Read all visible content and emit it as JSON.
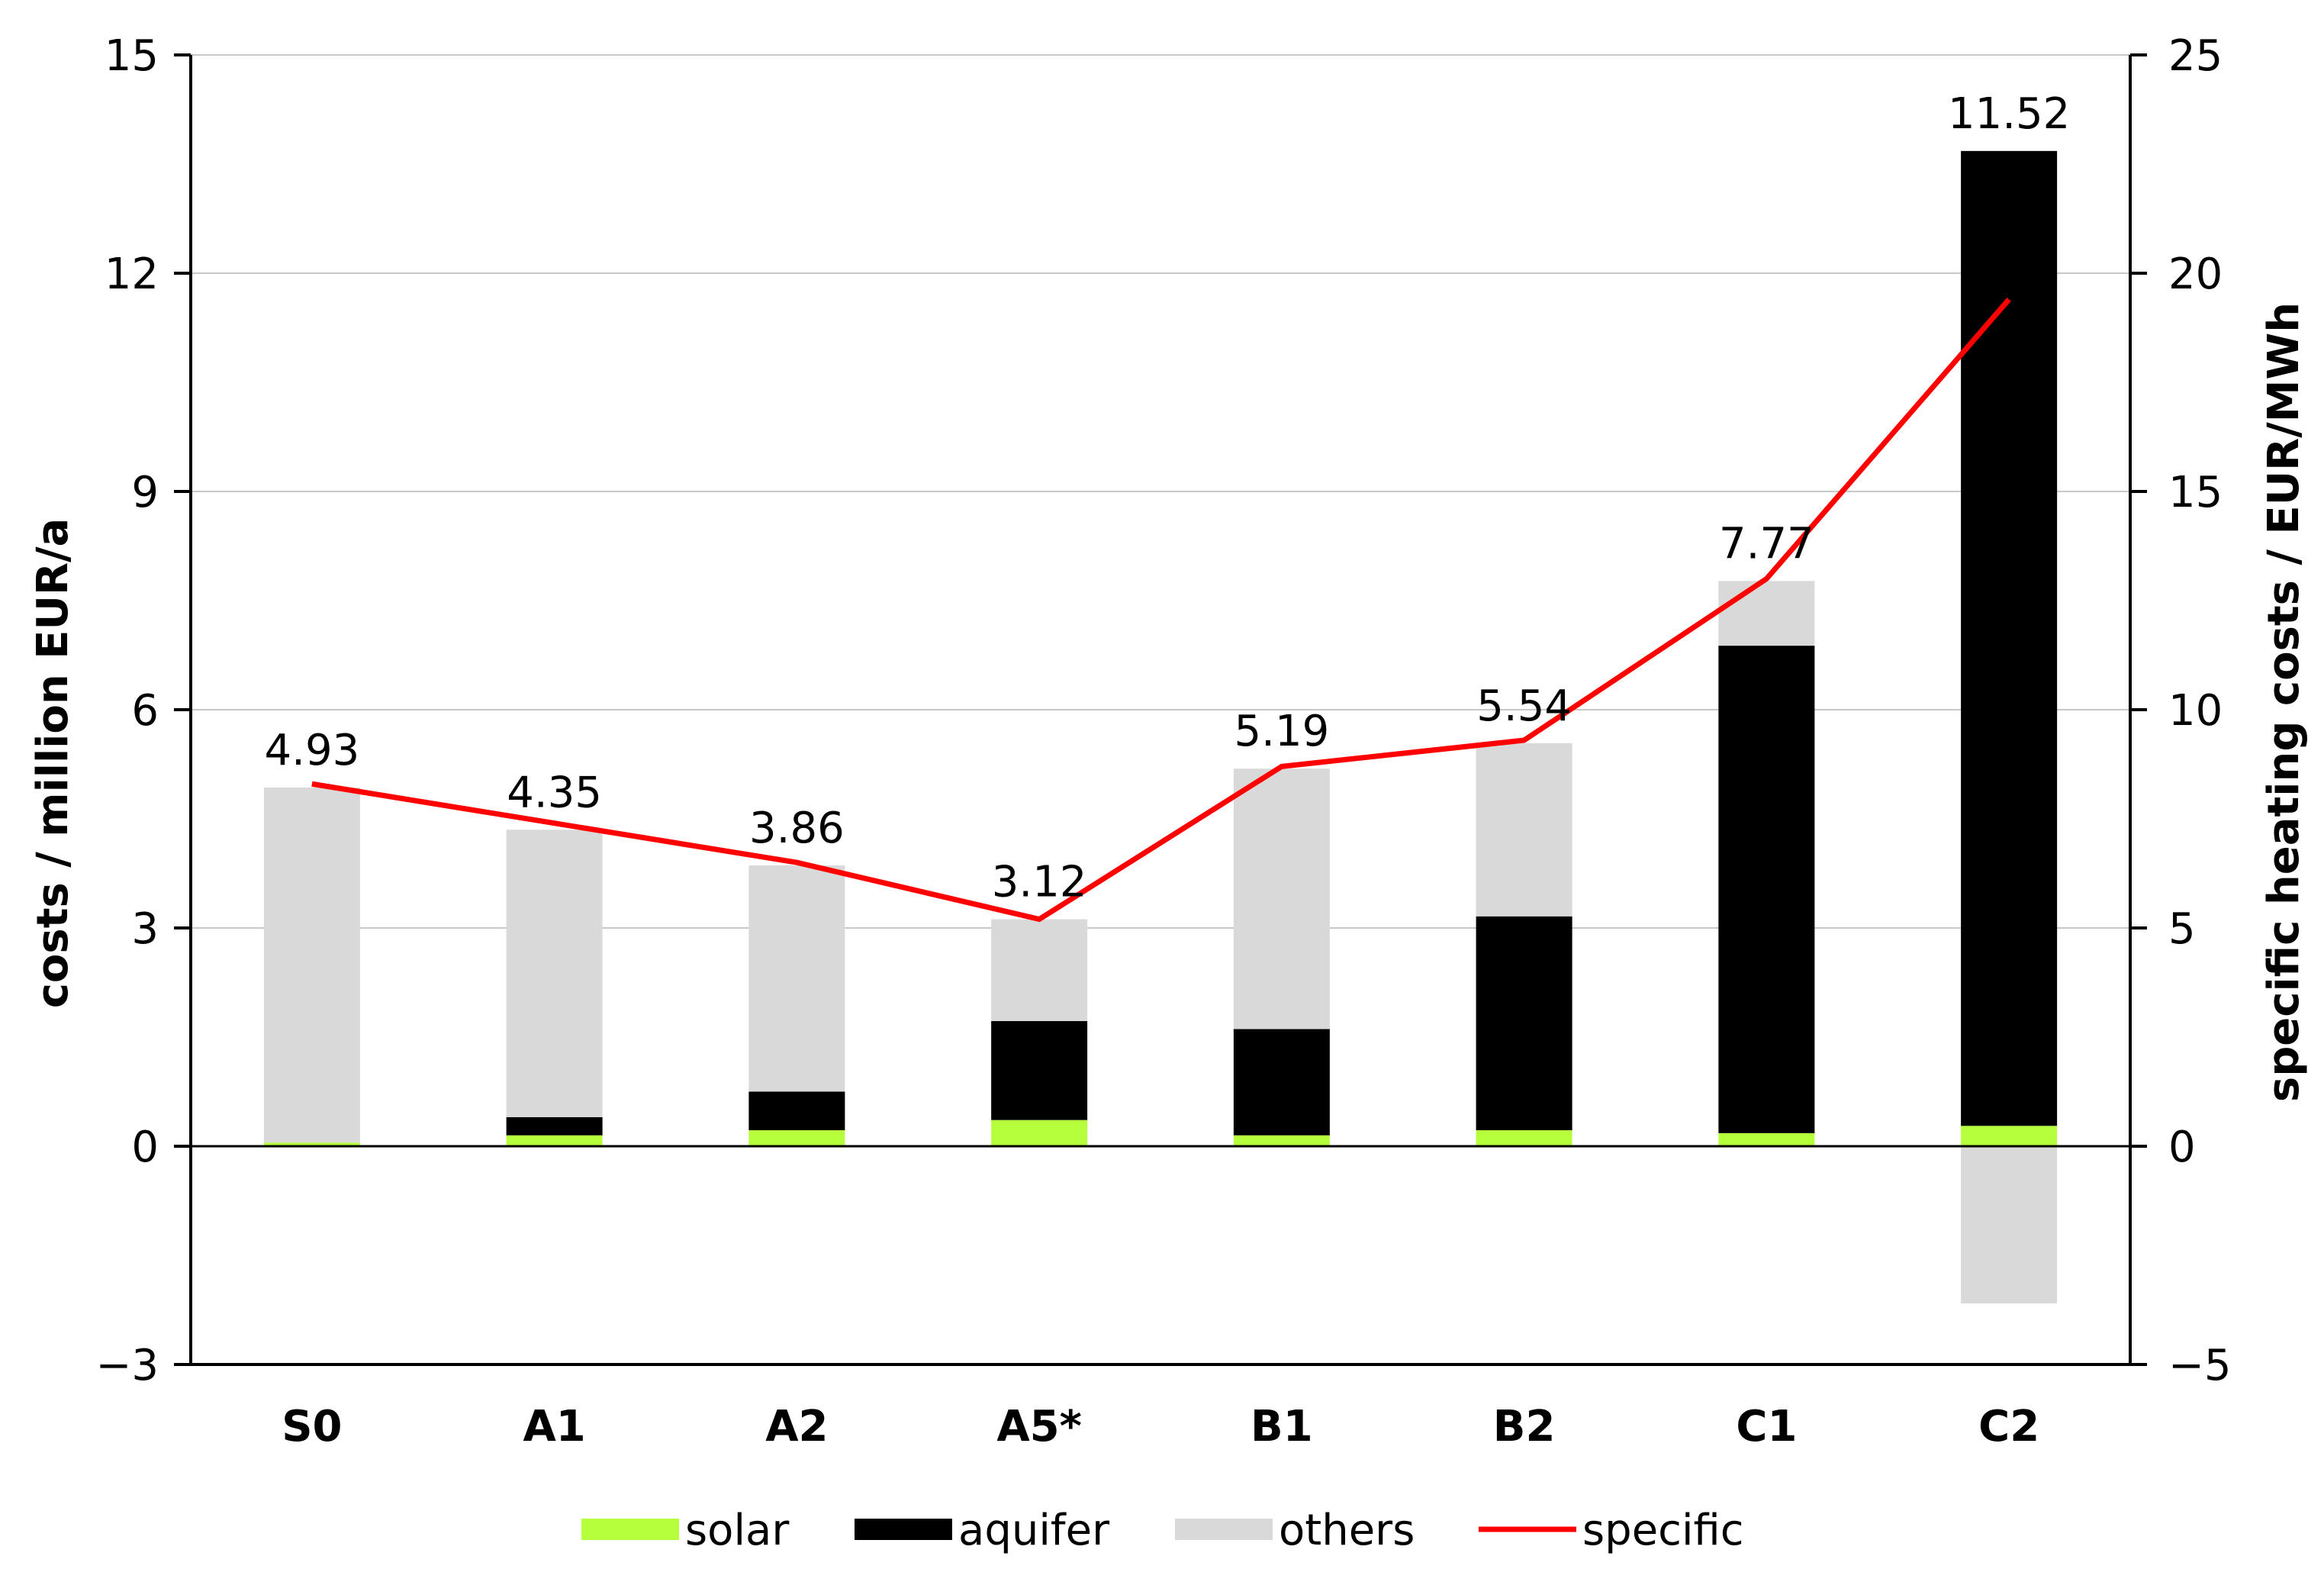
{
  "chart_data": {
    "type": "bar",
    "stacked": true,
    "categories": [
      "S0",
      "A1",
      "A2",
      "A5*",
      "B1",
      "B2",
      "C1",
      "C2"
    ],
    "series": [
      {
        "name": "solar",
        "color": "#b6ff3c",
        "values": [
          0.05,
          0.15,
          0.22,
          0.36,
          0.15,
          0.22,
          0.18,
          0.28
        ]
      },
      {
        "name": "aquifer",
        "color": "#000000",
        "values": [
          0.0,
          0.25,
          0.53,
          1.36,
          1.46,
          2.94,
          6.7,
          13.4
        ]
      },
      {
        "name": "others",
        "color": "#d9d9d9",
        "values": [
          4.88,
          3.95,
          3.11,
          1.4,
          3.58,
          2.38,
          0.89,
          -2.16
        ]
      }
    ],
    "specific": {
      "name": "specific",
      "color": "#ff0000",
      "values": [
        8.3,
        7.4,
        6.5,
        5.2,
        8.7,
        9.3,
        13.0,
        19.4
      ]
    },
    "totals": [
      "4.93",
      "4.35",
      "3.86",
      "3.12",
      "5.19",
      "5.54",
      "7.77",
      "11.52"
    ],
    "ylabel": "costs / million EUR/a",
    "y2label": "specific heating costs / EUR/MWh",
    "ylim": [
      -3,
      15
    ],
    "yticks": [
      -3,
      0,
      3,
      6,
      9,
      12,
      15
    ],
    "ytick_labels": [
      "−3",
      "0",
      "3",
      "6",
      "9",
      "12",
      "15"
    ],
    "y2lim": [
      -5,
      25
    ],
    "y2ticks": [
      -5,
      0,
      5,
      10,
      15,
      20,
      25
    ],
    "y2tick_labels": [
      "−5",
      "0",
      "5",
      "10",
      "15",
      "20",
      "25"
    ],
    "grid": true,
    "legend": [
      "solar",
      "aquifer",
      "others",
      "specific"
    ],
    "legend_position": "bottom"
  }
}
